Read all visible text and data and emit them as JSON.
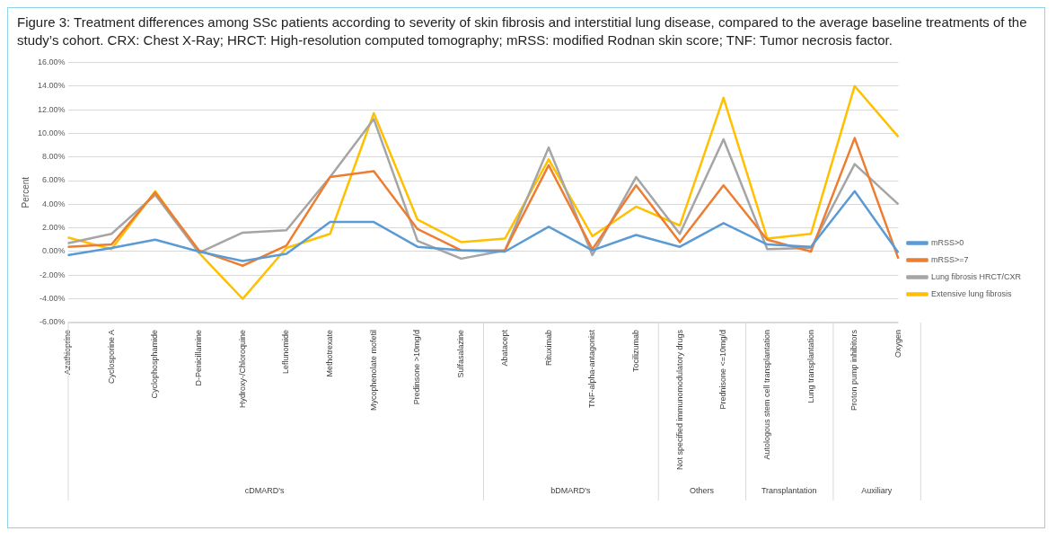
{
  "chart_data": {
    "type": "line",
    "title": "Figure 3: Treatment differences among SSc patients according to severity of skin fibrosis and interstitial lung disease, compared to the average baseline treatments of the study’s cohort. CRX: Chest X-Ray; HRCT: High-resolution computed tomography; mRSS: modified Rodnan skin score; TNF: Tumor necrosis factor.",
    "ylabel": "Percent",
    "categories": [
      "Azathioprine",
      "Cyclosporine A",
      "Cyclophosphamide",
      "D-Penicillamine",
      "Hydroxy-/Chloroquine",
      "Leflunomide",
      "Methotrexate",
      "Mycophenolate mofetil",
      "Predinsone >10mg/d",
      "Sulfasalazine",
      "Abatacept",
      "Rituximab",
      "TNF-alpha-antagonist",
      "Tocilizumab",
      "Not specified immunomodulatory drugs",
      "Prednisone <=10mg/d",
      "Autologous stem cell transplantation",
      "Lung transplantation",
      "Proton pump inhibitors",
      "Oxygen"
    ],
    "series": [
      {
        "name": "mRSS>0",
        "color": "#5b9bd5",
        "values": [
          -0.3,
          0.3,
          1.0,
          0.0,
          -0.8,
          -0.2,
          2.5,
          2.5,
          0.4,
          0.1,
          0.0,
          2.1,
          0.1,
          1.4,
          0.4,
          2.4,
          0.6,
          0.4,
          5.1,
          -0.1
        ]
      },
      {
        "name": "mRSS>=7",
        "color": "#ed7d31",
        "values": [
          0.4,
          0.6,
          5.0,
          0.1,
          -1.2,
          0.5,
          6.3,
          6.8,
          1.9,
          0.1,
          0.1,
          7.3,
          0.2,
          5.6,
          0.8,
          5.6,
          1.0,
          0.0,
          9.6,
          -0.6
        ]
      },
      {
        "name": "Lung fibrosis HRCT/CXR",
        "color": "#a5a5a5",
        "values": [
          0.7,
          1.5,
          4.8,
          -0.1,
          1.6,
          1.8,
          6.3,
          11.2,
          0.9,
          -0.6,
          0.1,
          8.8,
          -0.3,
          6.3,
          1.5,
          9.5,
          0.2,
          0.3,
          7.4,
          4.0
        ]
      },
      {
        "name": "Extensive lung fibrosis",
        "color": "#ffc000",
        "values": [
          1.2,
          0.2,
          5.1,
          -0.1,
          -4.0,
          0.3,
          1.5,
          11.7,
          2.7,
          0.8,
          1.1,
          7.8,
          1.3,
          3.8,
          2.2,
          13.0,
          1.1,
          1.5,
          14.0,
          9.7
        ]
      }
    ],
    "ylim": [
      -6,
      16
    ],
    "yticks": [
      {
        "value": -6,
        "label": "-6.00%"
      },
      {
        "value": -4,
        "label": "-4.00%"
      },
      {
        "value": -2,
        "label": "-2.00%"
      },
      {
        "value": 0,
        "label": "0.00%"
      },
      {
        "value": 2,
        "label": "2.00%"
      },
      {
        "value": 4,
        "label": "4.00%"
      },
      {
        "value": 6,
        "label": "6.00%"
      },
      {
        "value": 8,
        "label": "8.00%"
      },
      {
        "value": 10,
        "label": "10.00%"
      },
      {
        "value": 12,
        "label": "12.00%"
      },
      {
        "value": 14,
        "label": "14.00%"
      },
      {
        "value": 16,
        "label": "16.00%"
      }
    ],
    "grid": "y",
    "legend": "right",
    "marker": "none",
    "line_style": "solid",
    "annotations": [
      "cDMARD's",
      "bDMARD's",
      "Others",
      "Transplantation",
      "Auxiliary"
    ]
  }
}
